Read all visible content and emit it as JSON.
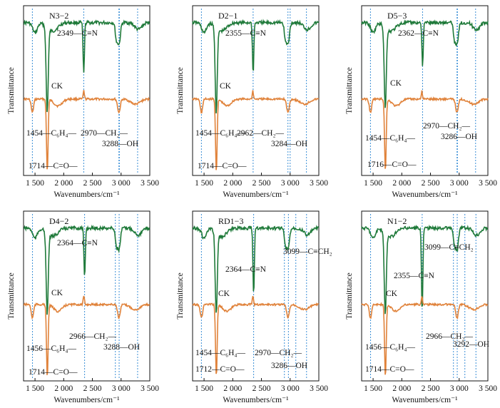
{
  "figure": {
    "ylabel": "Transmittance",
    "xlabel": "Wavenumbers/cm⁻¹",
    "colors": {
      "sample": "#1f7a3a",
      "ck": "#e0823a",
      "guide": "#3b8fd6",
      "axis": "#111111"
    }
  },
  "chart_data": [
    {
      "type": "line",
      "title": "N3−2",
      "xlabel": "Wavenumbers/cm⁻¹",
      "ylabel": "Transmittance",
      "xlim": [
        1300,
        3500
      ],
      "xticks": [
        1500,
        2000,
        2500,
        3000,
        3500
      ],
      "xtick_labels": [
        "1 500",
        "2 000",
        "2 500",
        "3 000",
        "3 500"
      ],
      "series": [
        {
          "name": "N3−2"
        },
        {
          "name": "CK"
        }
      ],
      "guides": [
        1454,
        2349,
        2962,
        2970,
        3288
      ],
      "labels": [
        {
          "text": "2349—C≡N"
        },
        {
          "text": "CK"
        },
        {
          "text": "1454—C₆H₄—"
        },
        {
          "text": "2970—CH₂—"
        },
        {
          "text": "3288—OH"
        },
        {
          "text": "1714—C=O—"
        }
      ]
    },
    {
      "type": "line",
      "title": "D2−1",
      "xlabel": "Wavenumbers/cm⁻¹",
      "ylabel": "Transmittance",
      "xlim": [
        1300,
        3500
      ],
      "xticks": [
        1500,
        2000,
        2500,
        3000,
        3500
      ],
      "xtick_labels": [
        "1 500",
        "2 000",
        "2 500",
        "3 000",
        "3 500"
      ],
      "series": [
        {
          "name": "D2−1"
        },
        {
          "name": "CK"
        }
      ],
      "guides": [
        1454,
        2355,
        2962,
        3000,
        3284
      ],
      "labels": [
        {
          "text": "2355—C≡N"
        },
        {
          "text": "CK"
        },
        {
          "text": "1454—C₆H₄—"
        },
        {
          "text": "2962—CH₂—"
        },
        {
          "text": "3284—OH"
        },
        {
          "text": "1714—C=O—"
        }
      ]
    },
    {
      "type": "line",
      "title": "D5−3",
      "xlabel": "Wavenumbers/cm⁻¹",
      "ylabel": "Transmittance",
      "xlim": [
        1300,
        3500
      ],
      "xticks": [
        1500,
        2000,
        2500,
        3000,
        3500
      ],
      "xtick_labels": [
        "1 500",
        "2 000",
        "2 500",
        "3 000",
        "3 500"
      ],
      "series": [
        {
          "name": "D5−3"
        },
        {
          "name": "CK"
        }
      ],
      "guides": [
        1454,
        2362,
        2962,
        2970,
        3286
      ],
      "labels": [
        {
          "text": "2362—C≡N"
        },
        {
          "text": "CK"
        },
        {
          "text": "1454—C₆H₄—"
        },
        {
          "text": "2970—CH₂—"
        },
        {
          "text": "3286—OH"
        },
        {
          "text": "1716—C=O—"
        }
      ]
    },
    {
      "type": "line",
      "title": "D4−2",
      "xlabel": "Wavenumbers/cm⁻¹",
      "ylabel": "Transmittance",
      "xlim": [
        1300,
        3500
      ],
      "xticks": [
        1500,
        2000,
        2500,
        3000,
        3500
      ],
      "xtick_labels": [
        "1 500",
        "2 000",
        "2 500",
        "3 000",
        "3 500"
      ],
      "series": [
        {
          "name": "D4−2"
        },
        {
          "name": "CK"
        }
      ],
      "guides": [
        1456,
        2364,
        2900,
        2966,
        3288
      ],
      "labels": [
        {
          "text": "2364—C≡N"
        },
        {
          "text": "CK"
        },
        {
          "text": "2966—CH₂—"
        },
        {
          "text": "3288—OH"
        },
        {
          "text": "1456—C₆H₄—"
        },
        {
          "text": "1714—C=O—"
        }
      ]
    },
    {
      "type": "line",
      "title": "RD1−3",
      "xlabel": "Wavenumbers/cm⁻¹",
      "ylabel": "Transmittance",
      "xlim": [
        1300,
        3500
      ],
      "xticks": [
        1500,
        2000,
        2500,
        3000,
        3500
      ],
      "xtick_labels": [
        "1 500",
        "2 000",
        "2 500",
        "3 000",
        "3 500"
      ],
      "series": [
        {
          "name": "RD1−3"
        },
        {
          "name": "CK"
        }
      ],
      "guides": [
        1454,
        2364,
        2900,
        2970,
        3099,
        3286
      ],
      "labels": [
        {
          "text": "3099—C≡CH₂"
        },
        {
          "text": "2364—C≡N"
        },
        {
          "text": "CK"
        },
        {
          "text": "1454—C₆H₄—"
        },
        {
          "text": "2970—CH₂—"
        },
        {
          "text": "1712—C=O—"
        },
        {
          "text": "3286—OH"
        }
      ]
    },
    {
      "type": "line",
      "title": "N1−2",
      "xlabel": "Wavenumbers/cm⁻¹",
      "ylabel": "Transmittance",
      "xlim": [
        1300,
        3500
      ],
      "xticks": [
        1500,
        2000,
        2500,
        3000,
        3500
      ],
      "xtick_labels": [
        "1 500",
        "2 000",
        "2 500",
        "3 000",
        "3 500"
      ],
      "series": [
        {
          "name": "N1−2"
        },
        {
          "name": "CK"
        }
      ],
      "guides": [
        1456,
        2355,
        2900,
        2966,
        3099,
        3292
      ],
      "labels": [
        {
          "text": "3099—C≡CH₂"
        },
        {
          "text": "2355—C≡N"
        },
        {
          "text": "CK"
        },
        {
          "text": "2966—CH₂—"
        },
        {
          "text": "1456—C₆H₄—"
        },
        {
          "text": "3292—OH"
        },
        {
          "text": "1714—C=O—"
        }
      ]
    }
  ]
}
